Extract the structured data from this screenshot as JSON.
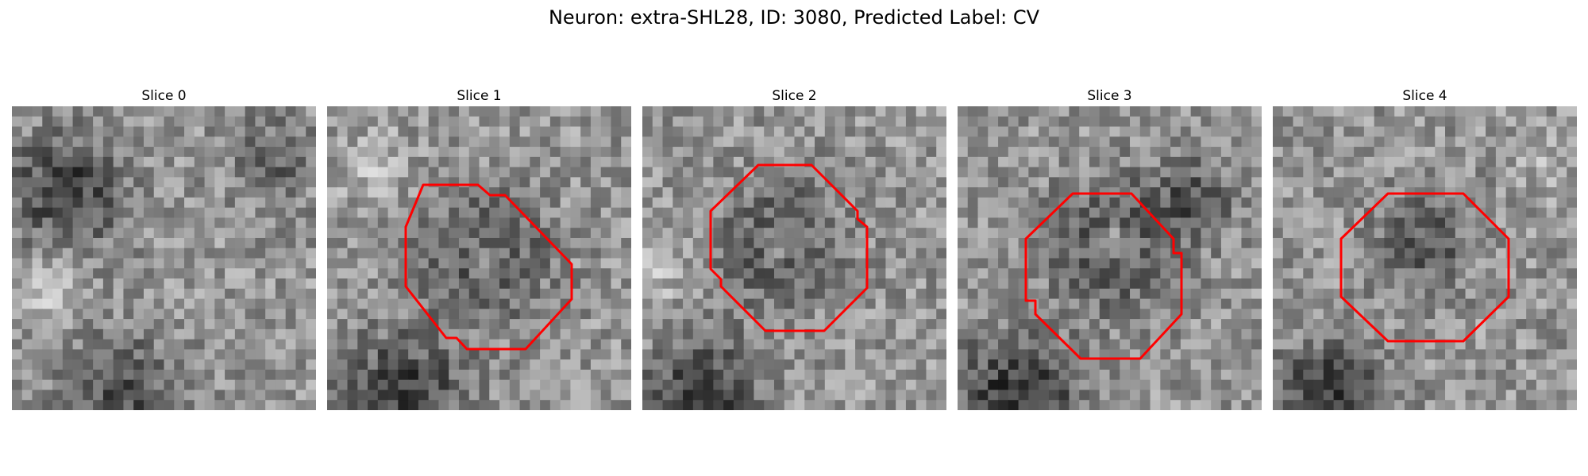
{
  "figure": {
    "title": "Neuron: extra-SHL28, ID: 3080, Predicted Label: CV"
  },
  "panels": [
    {
      "title": "Slice 0",
      "has_contour": false
    },
    {
      "title": "Slice 1",
      "has_contour": true
    },
    {
      "title": "Slice 2",
      "has_contour": true
    },
    {
      "title": "Slice 3",
      "has_contour": true
    },
    {
      "title": "Slice 4",
      "has_contour": true
    }
  ],
  "colors": {
    "contour": "#ff0000"
  }
}
